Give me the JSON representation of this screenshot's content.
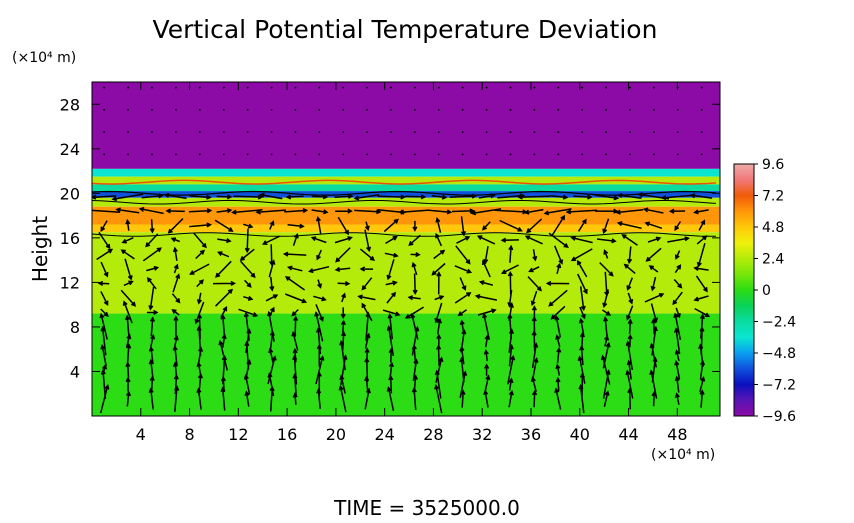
{
  "chart_data": {
    "type": "heatmap",
    "title": "Vertical Potential Temperature Deviation",
    "xlabel": "",
    "ylabel": "Height",
    "x_unit": "(×10⁴ m)",
    "y_unit": "(×10⁴ m)",
    "xlim": [
      0,
      51.5
    ],
    "ylim": [
      0,
      30
    ],
    "x_ticks": [
      4,
      8,
      12,
      16,
      20,
      24,
      28,
      32,
      36,
      40,
      44,
      48
    ],
    "y_ticks": [
      4,
      8,
      12,
      16,
      20,
      24,
      28
    ],
    "colorbar": {
      "min": -9.6,
      "max": 9.6,
      "ticks": [
        "9.6",
        "7.2",
        "4.8",
        "2.4",
        "0",
        "−2.4",
        "−4.8",
        "−7.2",
        "−9.6"
      ],
      "tick_values": [
        9.6,
        7.2,
        4.8,
        2.4,
        0,
        -2.4,
        -4.8,
        -7.2,
        -9.6
      ]
    },
    "layers": [
      {
        "y_range": [
          22.2,
          30
        ],
        "value": -9.6
      },
      {
        "y_range": [
          21.5,
          22.2
        ],
        "value": -3.0
      },
      {
        "y_range": [
          20.8,
          21.5
        ],
        "value": 2.0
      },
      {
        "y_range": [
          20.2,
          20.8
        ],
        "value": -2.0
      },
      {
        "y_range": [
          19.6,
          20.2
        ],
        "value": -6.5
      },
      {
        "y_range": [
          18.8,
          19.6
        ],
        "value": 2.4
      },
      {
        "y_range": [
          17.2,
          18.8
        ],
        "value": 5.8
      },
      {
        "y_range": [
          16.5,
          17.2
        ],
        "value": 4.2
      },
      {
        "y_range": [
          9.2,
          16.5
        ],
        "value": 2.4
      },
      {
        "y_range": [
          0,
          9.2
        ],
        "value": 0.3
      }
    ],
    "vectors": "wind-field arrows overlaid on the shaded field"
  },
  "footer": {
    "time_label": "TIME  =  3525000.0"
  }
}
